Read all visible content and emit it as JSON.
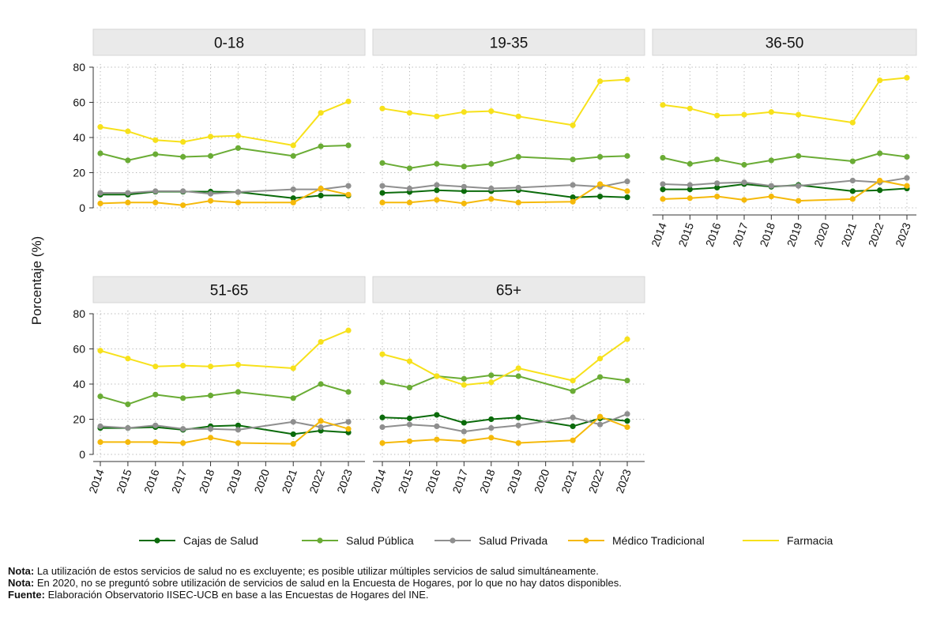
{
  "chart_data": {
    "type": "line",
    "ylabel": "Porcentaje (%)",
    "ylim": [
      0,
      80
    ],
    "yticks": [
      0,
      20,
      40,
      60,
      80
    ],
    "categories": [
      "2014",
      "2015",
      "2016",
      "2017",
      "2018",
      "2019",
      "2020",
      "2021",
      "2022",
      "2023"
    ],
    "series_styles": [
      {
        "name": "Cajas de Salud",
        "color": "#0b6b0b"
      },
      {
        "name": "Salud Pública",
        "color": "#6aac35"
      },
      {
        "name": "Salud Privada",
        "color": "#8f8f8f"
      },
      {
        "name": "Médico Tradicional",
        "color": "#f5b90a"
      },
      {
        "name": "Farmacia",
        "color": "#f7e11b"
      }
    ],
    "panels": [
      {
        "title": "0-18",
        "series": [
          {
            "name": "Cajas de Salud",
            "values": [
              7.5,
              7.5,
              9.2,
              9.2,
              9.2,
              9.0,
              null,
              5.5,
              7.0,
              7.0
            ]
          },
          {
            "name": "Salud Pública",
            "values": [
              31.0,
              27.0,
              30.5,
              29.0,
              29.5,
              34.0,
              null,
              29.5,
              35.0,
              35.5
            ]
          },
          {
            "name": "Salud Privada",
            "values": [
              8.5,
              8.5,
              9.5,
              9.5,
              8.0,
              9.0,
              null,
              10.5,
              10.5,
              12.5
            ]
          },
          {
            "name": "Médico Tradicional",
            "values": [
              2.5,
              3.0,
              3.0,
              1.5,
              4.0,
              3.0,
              null,
              3.0,
              11.0,
              7.5
            ]
          },
          {
            "name": "Farmacia",
            "values": [
              46.0,
              43.5,
              38.5,
              37.5,
              40.5,
              41.0,
              null,
              35.5,
              54.0,
              60.5
            ]
          }
        ]
      },
      {
        "title": "19-35",
        "series": [
          {
            "name": "Cajas de Salud",
            "values": [
              8.5,
              9.0,
              10.0,
              9.5,
              9.5,
              10.0,
              null,
              6.0,
              6.5,
              6.0
            ]
          },
          {
            "name": "Salud Pública",
            "values": [
              25.5,
              22.5,
              25.0,
              23.5,
              25.0,
              29.0,
              null,
              27.5,
              29.0,
              29.5
            ]
          },
          {
            "name": "Salud Privada",
            "values": [
              12.5,
              11.0,
              13.0,
              12.0,
              11.0,
              11.5,
              null,
              13.0,
              12.0,
              15.0
            ]
          },
          {
            "name": "Médico Tradicional",
            "values": [
              3.0,
              3.0,
              4.5,
              2.5,
              5.0,
              3.0,
              null,
              3.5,
              13.5,
              9.5
            ]
          },
          {
            "name": "Farmacia",
            "values": [
              56.5,
              54.0,
              52.0,
              54.5,
              55.0,
              52.0,
              null,
              47.0,
              72.0,
              73.0
            ]
          }
        ]
      },
      {
        "title": "36-50",
        "series": [
          {
            "name": "Cajas de Salud",
            "values": [
              10.5,
              10.5,
              11.5,
              13.5,
              12.0,
              13.0,
              null,
              9.5,
              10.0,
              11.0
            ]
          },
          {
            "name": "Salud Pública",
            "values": [
              28.5,
              25.0,
              27.5,
              24.5,
              27.0,
              29.5,
              null,
              26.5,
              31.0,
              29.0
            ]
          },
          {
            "name": "Salud Privada",
            "values": [
              13.5,
              13.0,
              14.0,
              14.5,
              12.5,
              12.5,
              null,
              15.5,
              14.5,
              17.0
            ]
          },
          {
            "name": "Médico Tradicional",
            "values": [
              5.0,
              5.5,
              6.5,
              4.5,
              6.5,
              4.0,
              null,
              5.0,
              15.5,
              12.5
            ]
          },
          {
            "name": "Farmacia",
            "values": [
              58.5,
              56.5,
              52.5,
              53.0,
              54.5,
              53.0,
              null,
              48.5,
              72.5,
              74.0
            ]
          }
        ]
      },
      {
        "title": "51-65",
        "series": [
          {
            "name": "Cajas de Salud",
            "values": [
              15.0,
              15.0,
              15.5,
              14.0,
              16.0,
              16.5,
              null,
              11.5,
              13.5,
              12.5
            ]
          },
          {
            "name": "Salud Pública",
            "values": [
              33.0,
              28.5,
              34.0,
              32.0,
              33.5,
              35.5,
              null,
              32.0,
              40.0,
              35.5
            ]
          },
          {
            "name": "Salud Privada",
            "values": [
              16.0,
              15.0,
              16.5,
              14.5,
              14.5,
              14.0,
              null,
              18.5,
              15.5,
              18.5
            ]
          },
          {
            "name": "Médico Tradicional",
            "values": [
              7.0,
              7.0,
              7.0,
              6.5,
              9.5,
              6.5,
              null,
              6.0,
              19.0,
              14.5
            ]
          },
          {
            "name": "Farmacia",
            "values": [
              59.0,
              54.5,
              50.0,
              50.5,
              50.0,
              51.0,
              null,
              49.0,
              64.0,
              70.5
            ]
          }
        ]
      },
      {
        "title": "65+",
        "series": [
          {
            "name": "Cajas de Salud",
            "values": [
              21.0,
              20.5,
              22.5,
              18.0,
              20.0,
              21.0,
              null,
              16.0,
              20.5,
              19.0
            ]
          },
          {
            "name": "Salud Pública",
            "values": [
              41.0,
              38.0,
              44.5,
              43.0,
              45.0,
              44.5,
              null,
              36.0,
              44.0,
              42.0
            ]
          },
          {
            "name": "Salud Privada",
            "values": [
              15.5,
              17.0,
              16.0,
              13.0,
              15.0,
              16.5,
              null,
              21.0,
              17.0,
              23.0
            ]
          },
          {
            "name": "Médico Tradicional",
            "values": [
              6.5,
              7.5,
              8.5,
              7.5,
              9.5,
              6.5,
              null,
              8.0,
              21.5,
              15.5
            ]
          },
          {
            "name": "Farmacia",
            "values": [
              57.0,
              53.0,
              44.5,
              39.5,
              41.0,
              49.0,
              null,
              42.0,
              54.5,
              65.5
            ]
          }
        ]
      }
    ]
  },
  "notes": [
    {
      "label": "Nota:",
      "text": " La utilización de estos servicios de salud no es excluyente; es posible utilizar múltiples servicios de salud simultáneamente."
    },
    {
      "label": "Nota:",
      "text": " En 2020, no se preguntó sobre utilización de servicios de salud en la Encuesta de Hogares, por lo que no hay datos disponibles."
    },
    {
      "label": "Fuente:",
      "text": " Elaboración Observatorio IISEC-UCB en base a las Encuestas de Hogares del INE."
    }
  ]
}
